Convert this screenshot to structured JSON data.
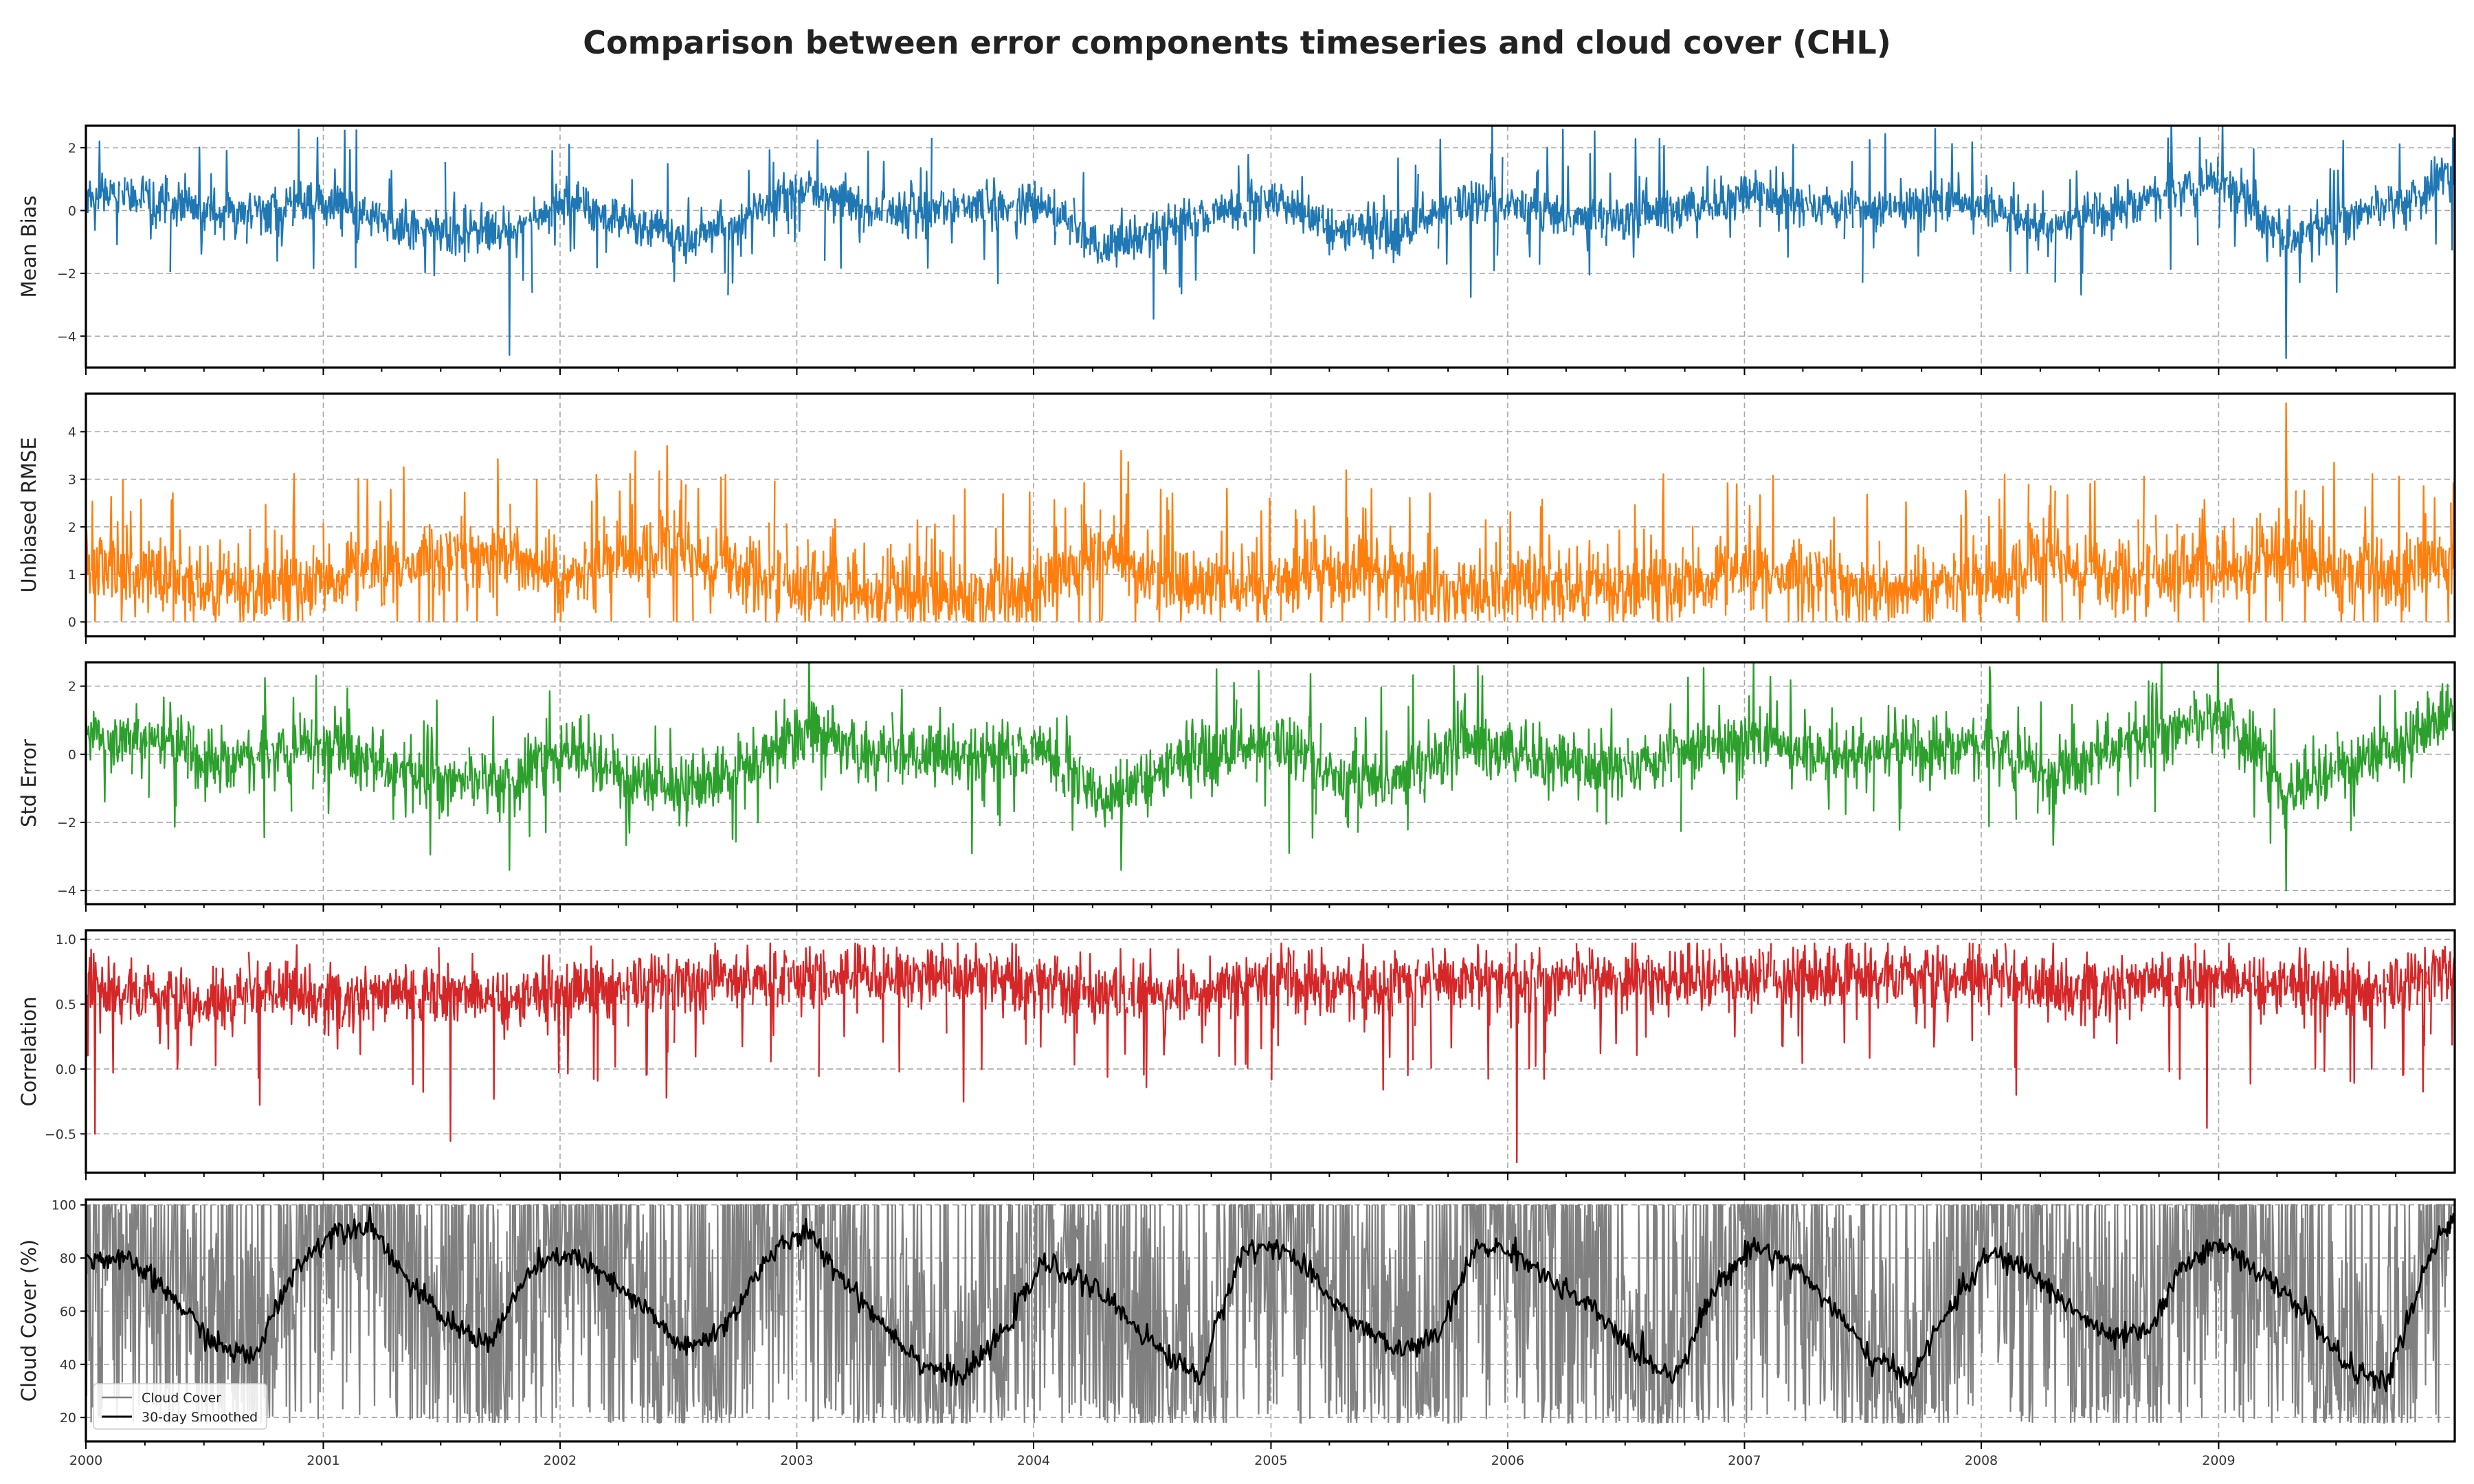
{
  "figure": {
    "title": "Comparison between error components timeseries and cloud cover (CHL)"
  },
  "chart_data": [
    {
      "type": "line",
      "ylabel": "Mean Bias",
      "color": "#1f77b4",
      "xlim": [
        "2000-01-01",
        "2009-12-31"
      ],
      "ylim": [
        -5.0,
        2.7
      ],
      "yticks": [
        2,
        0,
        -2,
        -4
      ],
      "ytick_labels": [
        "2",
        "0",
        "−2",
        "−4"
      ],
      "grid": true,
      "series": [
        {
          "x": [
            "2000-01",
            "2000-04",
            "2000-07",
            "2000-10",
            "2001-01",
            "2001-04",
            "2001-07",
            "2001-10",
            "2002-01",
            "2002-04",
            "2002-07",
            "2002-10",
            "2003-01",
            "2003-04",
            "2003-07",
            "2003-10",
            "2004-01",
            "2004-04",
            "2004-07",
            "2004-10",
            "2005-01",
            "2005-04",
            "2005-07",
            "2005-10",
            "2006-01",
            "2006-04",
            "2006-07",
            "2006-10",
            "2007-01",
            "2007-04",
            "2007-07",
            "2007-10",
            "2008-01",
            "2008-04",
            "2008-07",
            "2008-10",
            "2009-01",
            "2009-04",
            "2009-07",
            "2009-10",
            "2009-12"
          ],
          "values": [
            0.5,
            0.3,
            -0.1,
            0.0,
            0.3,
            -0.4,
            -0.7,
            -0.6,
            0.3,
            -0.4,
            -0.9,
            -0.3,
            0.7,
            0.0,
            0.0,
            0.1,
            0.2,
            -1.3,
            -0.5,
            0.0,
            0.3,
            -0.6,
            -0.6,
            0.2,
            0.2,
            -0.2,
            -0.2,
            0.2,
            0.5,
            0.2,
            0.1,
            0.3,
            0.2,
            -0.6,
            0.0,
            0.6,
            0.9,
            -1.0,
            -0.2,
            0.2,
            1.0
          ],
          "extremes": [
            {
              "x": "2001-10",
              "y": -4.6
            },
            {
              "x": "2009-04",
              "y": -4.7
            },
            {
              "x": "2008-10",
              "y": 2.3
            },
            {
              "x": "2002-01",
              "y": 2.1
            }
          ]
        }
      ]
    },
    {
      "type": "line",
      "ylabel": "Unbiased RMSE",
      "color": "#ff7f0e",
      "xlim": [
        "2000-01-01",
        "2009-12-31"
      ],
      "ylim": [
        -0.3,
        4.8
      ],
      "yticks": [
        4,
        3,
        2,
        1,
        0
      ],
      "ytick_labels": [
        "4",
        "3",
        "2",
        "1",
        "0"
      ],
      "grid": true,
      "series": [
        {
          "x": [
            "2000-01",
            "2000-04",
            "2000-07",
            "2000-10",
            "2001-01",
            "2001-04",
            "2001-07",
            "2001-10",
            "2002-01",
            "2002-04",
            "2002-07",
            "2002-10",
            "2003-01",
            "2003-04",
            "2003-07",
            "2003-10",
            "2004-01",
            "2004-04",
            "2004-07",
            "2004-10",
            "2005-01",
            "2005-04",
            "2005-07",
            "2005-10",
            "2006-01",
            "2006-04",
            "2006-07",
            "2006-10",
            "2007-01",
            "2007-04",
            "2007-07",
            "2007-10",
            "2008-01",
            "2008-04",
            "2008-07",
            "2008-10",
            "2009-01",
            "2009-04",
            "2009-07",
            "2009-10",
            "2009-12"
          ],
          "values": [
            1.2,
            1.0,
            0.8,
            0.7,
            1.0,
            1.1,
            1.3,
            1.5,
            0.9,
            1.4,
            1.3,
            1.0,
            0.7,
            0.6,
            0.5,
            0.5,
            0.6,
            1.6,
            0.8,
            0.6,
            0.8,
            1.0,
            0.8,
            0.6,
            0.8,
            0.8,
            0.7,
            0.9,
            1.0,
            0.9,
            0.7,
            0.8,
            0.8,
            1.2,
            0.9,
            1.0,
            1.1,
            1.3,
            1.0,
            0.9,
            1.3
          ],
          "extremes": [
            {
              "x": "2009-04",
              "y": 4.6
            },
            {
              "x": "2002-06",
              "y": 3.7
            },
            {
              "x": "2004-05",
              "y": 3.6
            }
          ]
        }
      ]
    },
    {
      "type": "line",
      "ylabel": "Std Error",
      "color": "#2ca02c",
      "xlim": [
        "2000-01-01",
        "2009-12-31"
      ],
      "ylim": [
        -4.4,
        2.7
      ],
      "yticks": [
        2,
        0,
        -2,
        -4
      ],
      "ytick_labels": [
        "2",
        "0",
        "−2",
        "−4"
      ],
      "grid": true,
      "series": [
        {
          "x": [
            "2000-01",
            "2000-04",
            "2000-07",
            "2000-10",
            "2001-01",
            "2001-04",
            "2001-07",
            "2001-10",
            "2002-01",
            "2002-04",
            "2002-07",
            "2002-10",
            "2003-01",
            "2003-04",
            "2003-07",
            "2003-10",
            "2004-01",
            "2004-04",
            "2004-07",
            "2004-10",
            "2005-01",
            "2005-04",
            "2005-07",
            "2005-10",
            "2006-01",
            "2006-04",
            "2006-07",
            "2006-10",
            "2007-01",
            "2007-04",
            "2007-07",
            "2007-10",
            "2008-01",
            "2008-04",
            "2008-07",
            "2008-10",
            "2009-01",
            "2009-04",
            "2009-07",
            "2009-10",
            "2009-12"
          ],
          "values": [
            0.5,
            0.4,
            -0.2,
            0.0,
            0.3,
            -0.5,
            -0.8,
            -0.9,
            0.2,
            -0.7,
            -1.0,
            -0.4,
            0.8,
            0.0,
            -0.1,
            0.1,
            0.2,
            -1.4,
            -0.4,
            0.2,
            0.3,
            -0.7,
            -0.7,
            0.3,
            0.2,
            -0.4,
            -0.3,
            0.3,
            0.5,
            0.1,
            0.0,
            0.2,
            0.3,
            -0.7,
            0.1,
            0.7,
            1.0,
            -1.1,
            -0.3,
            0.3,
            1.2
          ],
          "extremes": [
            {
              "x": "2009-04",
              "y": -4.0
            },
            {
              "x": "2004-05",
              "y": -3.4
            },
            {
              "x": "2001-10",
              "y": -3.4
            },
            {
              "x": "2008-01",
              "y": 2.3
            }
          ]
        }
      ]
    },
    {
      "type": "line",
      "ylabel": "Correlation",
      "color": "#d62728",
      "xlim": [
        "2000-01-01",
        "2009-12-31"
      ],
      "ylim": [
        -0.8,
        1.07
      ],
      "yticks": [
        1.0,
        0.5,
        0.0,
        -0.5
      ],
      "ytick_labels": [
        "1.0",
        "0.5",
        "0.0",
        "−0.5"
      ],
      "grid": true,
      "series": [
        {
          "x": [
            "2000-01",
            "2000-04",
            "2000-07",
            "2000-10",
            "2001-01",
            "2001-04",
            "2001-07",
            "2001-10",
            "2002-01",
            "2002-04",
            "2002-07",
            "2002-10",
            "2003-01",
            "2003-04",
            "2003-07",
            "2003-10",
            "2004-01",
            "2004-04",
            "2004-07",
            "2004-10",
            "2005-01",
            "2005-04",
            "2005-07",
            "2005-10",
            "2006-01",
            "2006-04",
            "2006-07",
            "2006-10",
            "2007-01",
            "2007-04",
            "2007-07",
            "2007-10",
            "2008-01",
            "2008-04",
            "2008-07",
            "2008-10",
            "2009-01",
            "2009-04",
            "2009-07",
            "2009-10",
            "2009-12"
          ],
          "values": [
            0.6,
            0.55,
            0.5,
            0.6,
            0.55,
            0.6,
            0.6,
            0.55,
            0.6,
            0.65,
            0.65,
            0.7,
            0.7,
            0.75,
            0.7,
            0.7,
            0.65,
            0.6,
            0.6,
            0.65,
            0.7,
            0.65,
            0.65,
            0.7,
            0.65,
            0.7,
            0.7,
            0.7,
            0.7,
            0.7,
            0.7,
            0.7,
            0.7,
            0.6,
            0.65,
            0.7,
            0.7,
            0.65,
            0.6,
            0.65,
            0.75
          ],
          "extremes": [
            {
              "x": "2006-01",
              "y": -0.72
            },
            {
              "x": "2003-07",
              "y": -0.63
            },
            {
              "x": "2000-01",
              "y": -0.5
            }
          ]
        }
      ]
    },
    {
      "type": "line",
      "ylabel": "Cloud Cover (%)",
      "xlim": [
        "2000-01-01",
        "2009-12-31"
      ],
      "ylim": [
        11,
        102
      ],
      "yticks": [
        100,
        80,
        60,
        40,
        20
      ],
      "ytick_labels": [
        "100",
        "80",
        "60",
        "40",
        "20"
      ],
      "grid": true,
      "legend": "lower-left",
      "series": [
        {
          "name": "Cloud Cover",
          "color": "#808080",
          "range": [
            18,
            100
          ]
        },
        {
          "name": "30-day Smoothed",
          "color": "#000000",
          "x": [
            "2000-01",
            "2000-03",
            "2000-05",
            "2000-07",
            "2000-09",
            "2000-11",
            "2001-01",
            "2001-03",
            "2001-05",
            "2001-07",
            "2001-09",
            "2001-11",
            "2002-01",
            "2002-03",
            "2002-05",
            "2002-07",
            "2002-09",
            "2002-11",
            "2003-01",
            "2003-03",
            "2003-05",
            "2003-07",
            "2003-09",
            "2003-11",
            "2004-01",
            "2004-03",
            "2004-05",
            "2004-07",
            "2004-09",
            "2004-11",
            "2005-01",
            "2005-03",
            "2005-05",
            "2005-07",
            "2005-09",
            "2005-11",
            "2006-01",
            "2006-03",
            "2006-05",
            "2006-07",
            "2006-09",
            "2006-11",
            "2007-01",
            "2007-03",
            "2007-05",
            "2007-07",
            "2007-09",
            "2007-11",
            "2008-01",
            "2008-03",
            "2008-05",
            "2008-07",
            "2008-09",
            "2008-11",
            "2009-01",
            "2009-03",
            "2009-05",
            "2009-07",
            "2009-09",
            "2009-11",
            "2009-12"
          ],
          "values": [
            80,
            78,
            65,
            48,
            42,
            75,
            90,
            93,
            70,
            55,
            48,
            75,
            82,
            72,
            60,
            45,
            55,
            80,
            90,
            72,
            55,
            40,
            35,
            52,
            78,
            72,
            60,
            45,
            35,
            82,
            85,
            70,
            55,
            45,
            50,
            85,
            82,
            70,
            60,
            45,
            35,
            68,
            85,
            78,
            62,
            42,
            35,
            62,
            82,
            75,
            62,
            50,
            52,
            80,
            85,
            72,
            60,
            40,
            32,
            75,
            92
          ]
        }
      ]
    }
  ],
  "xaxis": {
    "tick_labels": [
      "2000",
      "2001",
      "2002",
      "2003",
      "2004",
      "2005",
      "2006",
      "2007",
      "2008",
      "2009"
    ]
  }
}
